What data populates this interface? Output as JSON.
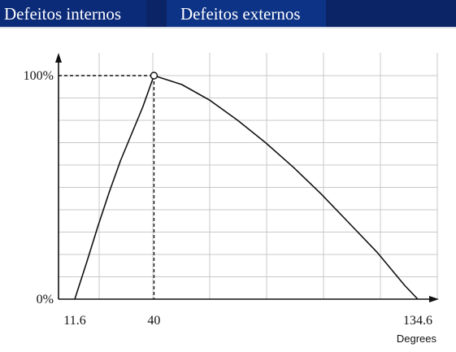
{
  "tabs": [
    {
      "label": "Defeitos internos"
    },
    {
      "label": "Defeitos externos"
    }
  ],
  "colors": {
    "tabbar": "#0a2466",
    "grid": "#c8c8c8",
    "line": "#111111"
  },
  "chart_data": {
    "type": "line",
    "title": "",
    "xlabel": "Degrees",
    "ylabel": "",
    "xlim": [
      11.6,
      134.6
    ],
    "ylim": [
      0,
      100
    ],
    "x_ticks": [
      {
        "value": 11.6,
        "label": "11.6"
      },
      {
        "value": 40,
        "label": "40"
      },
      {
        "value": 134.6,
        "label": "134.6"
      }
    ],
    "y_ticks": [
      {
        "value": 0,
        "label": "0%"
      },
      {
        "value": 100,
        "label": "100%"
      }
    ],
    "grid": true,
    "series": [
      {
        "x": [
          11.6,
          16,
          20,
          24,
          28,
          32,
          36,
          40,
          50,
          60,
          70,
          80,
          90,
          100,
          110,
          120,
          130,
          134.6
        ],
        "y": [
          0,
          17,
          33,
          48,
          62,
          74,
          86,
          100,
          96,
          89,
          80,
          70,
          59,
          47,
          34,
          21,
          6,
          0
        ]
      }
    ],
    "peak_marker": {
      "x": 40,
      "y": 100
    }
  }
}
